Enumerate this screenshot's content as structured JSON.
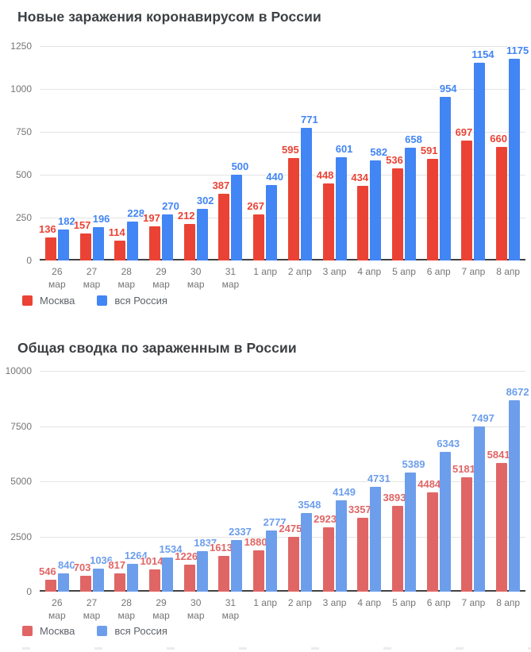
{
  "chart_data": [
    {
      "type": "bar",
      "title": "Новые заражения коронавирусом в России",
      "categories": [
        "26\nмар",
        "27\nмар",
        "28\nмар",
        "29\nмар",
        "30\nмар",
        "31\nмар",
        "1 апр",
        "2 апр",
        "3 апр",
        "4 апр",
        "5 апр",
        "6 апр",
        "7 апр",
        "8 апр"
      ],
      "series": [
        {
          "name": "Москва",
          "color": "#EA4335",
          "values": [
            136,
            157,
            114,
            197,
            212,
            387,
            267,
            595,
            448,
            434,
            536,
            591,
            697,
            660
          ]
        },
        {
          "name": "вся Россия",
          "color": "#4285F4",
          "values": [
            182,
            196,
            228,
            270,
            302,
            500,
            440,
            771,
            601,
            582,
            658,
            954,
            1154,
            1175
          ]
        }
      ],
      "xlabel": "",
      "ylabel": "",
      "ylim": [
        0,
        1250
      ],
      "yticks": [
        0,
        250,
        500,
        750,
        1000,
        1250
      ],
      "grid": true,
      "legend_position": "bottom-left"
    },
    {
      "type": "bar",
      "title": "Общая сводка по зараженным в России",
      "categories": [
        "26\nмар",
        "27\nмар",
        "28\nмар",
        "29\nмар",
        "30\nмар",
        "31\nмар",
        "1 апр",
        "2 апр",
        "3 апр",
        "4 апр",
        "5 апр",
        "6 апр",
        "7 апр",
        "8 апр"
      ],
      "series": [
        {
          "name": "Москва",
          "color": "#E06666",
          "values": [
            546,
            703,
            817,
            1014,
            1226,
            1613,
            1880,
            2475,
            2923,
            3357,
            3893,
            4484,
            5181,
            5841
          ]
        },
        {
          "name": "вся Россия",
          "color": "#6D9EEB",
          "values": [
            840,
            1036,
            1264,
            1534,
            1837,
            2337,
            2777,
            3548,
            4149,
            4731,
            5389,
            6343,
            7497,
            8672
          ]
        }
      ],
      "xlabel": "",
      "ylabel": "",
      "ylim": [
        0,
        10000
      ],
      "yticks": [
        0,
        2500,
        5000,
        7500,
        10000
      ],
      "grid": true,
      "legend_position": "bottom-left"
    }
  ],
  "style": {
    "background": "#ffffff",
    "title_color": "#3c4043",
    "axis_text_color": "#757575",
    "gridline_color": "#e4e4e4",
    "baseline_color": "#424242",
    "legend_text_color": "#5f6368"
  }
}
